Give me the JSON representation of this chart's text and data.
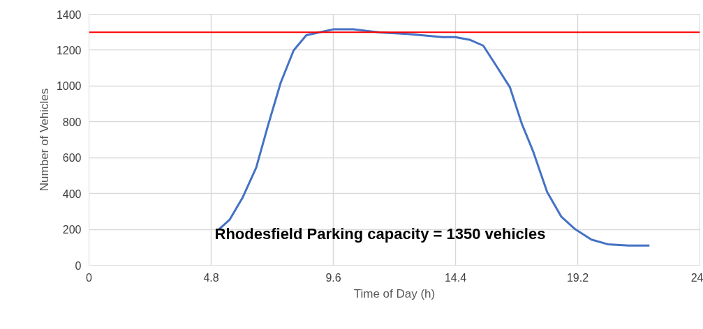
{
  "chart_data": {
    "type": "line",
    "xlabel": "Time of Day (h)",
    "ylabel": "Number of Vehicles",
    "x": [
      5.11,
      5.52,
      6.03,
      6.57,
      7.03,
      7.53,
      8.04,
      8.54,
      9.04,
      9.59,
      10.41,
      11.42,
      12.52,
      13.89,
      14.39,
      14.98,
      15.49,
      15.99,
      16.54,
      17.0,
      17.45,
      18.0,
      18.55,
      19.1,
      19.74,
      20.38,
      21.2,
      22.02
    ],
    "series": [
      {
        "color": "#4472c4",
        "values": [
          201,
          253,
          376,
          545,
          778,
          1018,
          1199,
          1283,
          1299,
          1316,
          1316,
          1299,
          1290,
          1273,
          1273,
          1257,
          1225,
          1115,
          992,
          791,
          635,
          408,
          272,
          201,
          143,
          117,
          110,
          110
        ]
      }
    ],
    "xlim": [
      0,
      24
    ],
    "xticks": [
      0,
      4.8,
      9.6,
      14.4,
      19.2,
      24
    ],
    "ylim": [
      0,
      1400
    ],
    "yticks": [
      0,
      200,
      400,
      600,
      800,
      1000,
      1200,
      1400
    ],
    "grid": true,
    "marker": "none",
    "line_style": "solid",
    "ref_lines": [
      {
        "axis": "y",
        "value": 1300,
        "color": "#ff0000"
      }
    ],
    "annotations": [
      "Rhodesfield Parking capacity = 1350  vehicles"
    ]
  }
}
